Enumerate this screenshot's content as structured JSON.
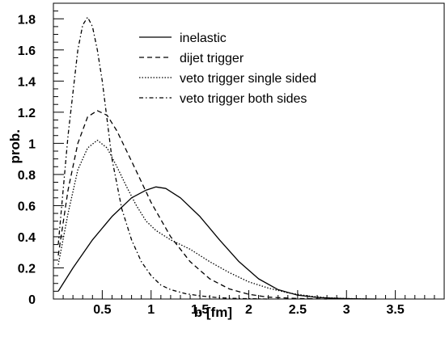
{
  "chart_data": {
    "type": "line",
    "xlabel": "b [fm]",
    "ylabel": "prob.",
    "xlim": [
      0,
      4
    ],
    "ylim": [
      0,
      1.9
    ],
    "x_ticks": [
      0.5,
      1,
      1.5,
      2,
      2.5,
      3,
      3.5
    ],
    "x_tick_labels": [
      "0.5",
      "1",
      "1.5",
      "2",
      "2.5",
      "3",
      "3.5"
    ],
    "y_ticks": [
      0,
      0.2,
      0.4,
      0.6,
      0.8,
      1,
      1.2,
      1.4,
      1.6,
      1.8
    ],
    "y_tick_labels": [
      "0",
      "0.2",
      "0.4",
      "0.6",
      "0.8",
      "1",
      "1.2",
      "1.4",
      "1.6",
      "1.8"
    ],
    "grid": false,
    "legend_position": "top-right",
    "series": [
      {
        "name": "inelastic",
        "dash": "solid",
        "x": [
          0.05,
          0.2,
          0.4,
          0.6,
          0.8,
          0.95,
          1.05,
          1.15,
          1.3,
          1.5,
          1.7,
          1.9,
          2.1,
          2.3,
          2.5,
          2.7,
          2.9,
          3.1,
          3.3
        ],
        "y": [
          0.05,
          0.2,
          0.38,
          0.53,
          0.65,
          0.7,
          0.72,
          0.71,
          0.65,
          0.53,
          0.38,
          0.24,
          0.13,
          0.06,
          0.025,
          0.01,
          0.004,
          0.001,
          0
        ]
      },
      {
        "name": "dijet trigger",
        "dash": "dashed",
        "x": [
          0.05,
          0.15,
          0.25,
          0.35,
          0.45,
          0.55,
          0.65,
          0.75,
          0.85,
          1.0,
          1.2,
          1.4,
          1.6,
          1.8,
          2.0,
          2.2,
          2.5,
          2.8
        ],
        "y": [
          0.28,
          0.7,
          1.0,
          1.17,
          1.21,
          1.18,
          1.08,
          0.95,
          0.82,
          0.62,
          0.4,
          0.24,
          0.13,
          0.065,
          0.03,
          0.012,
          0.003,
          0
        ]
      },
      {
        "name": "veto trigger single sided",
        "dash": "dotted",
        "x": [
          0.05,
          0.15,
          0.25,
          0.35,
          0.45,
          0.55,
          0.65,
          0.75,
          0.85,
          0.95,
          1.05,
          1.2,
          1.4,
          1.6,
          1.8,
          2.0,
          2.2,
          2.4,
          2.6,
          2.8,
          3.0,
          3.2
        ],
        "y": [
          0.22,
          0.55,
          0.83,
          0.97,
          1.02,
          0.97,
          0.85,
          0.72,
          0.6,
          0.5,
          0.44,
          0.38,
          0.32,
          0.24,
          0.17,
          0.11,
          0.07,
          0.04,
          0.02,
          0.008,
          0.003,
          0
        ]
      },
      {
        "name": "veto trigger both sides",
        "dash": "dashdot",
        "x": [
          0.05,
          0.15,
          0.25,
          0.3,
          0.35,
          0.4,
          0.45,
          0.5,
          0.6,
          0.7,
          0.8,
          0.9,
          1.0,
          1.1,
          1.2,
          1.35,
          1.5,
          1.7,
          1.9,
          2.2
        ],
        "y": [
          0.35,
          1.05,
          1.6,
          1.76,
          1.81,
          1.75,
          1.6,
          1.4,
          0.9,
          0.58,
          0.38,
          0.24,
          0.15,
          0.09,
          0.06,
          0.035,
          0.02,
          0.008,
          0.003,
          0
        ]
      }
    ]
  }
}
